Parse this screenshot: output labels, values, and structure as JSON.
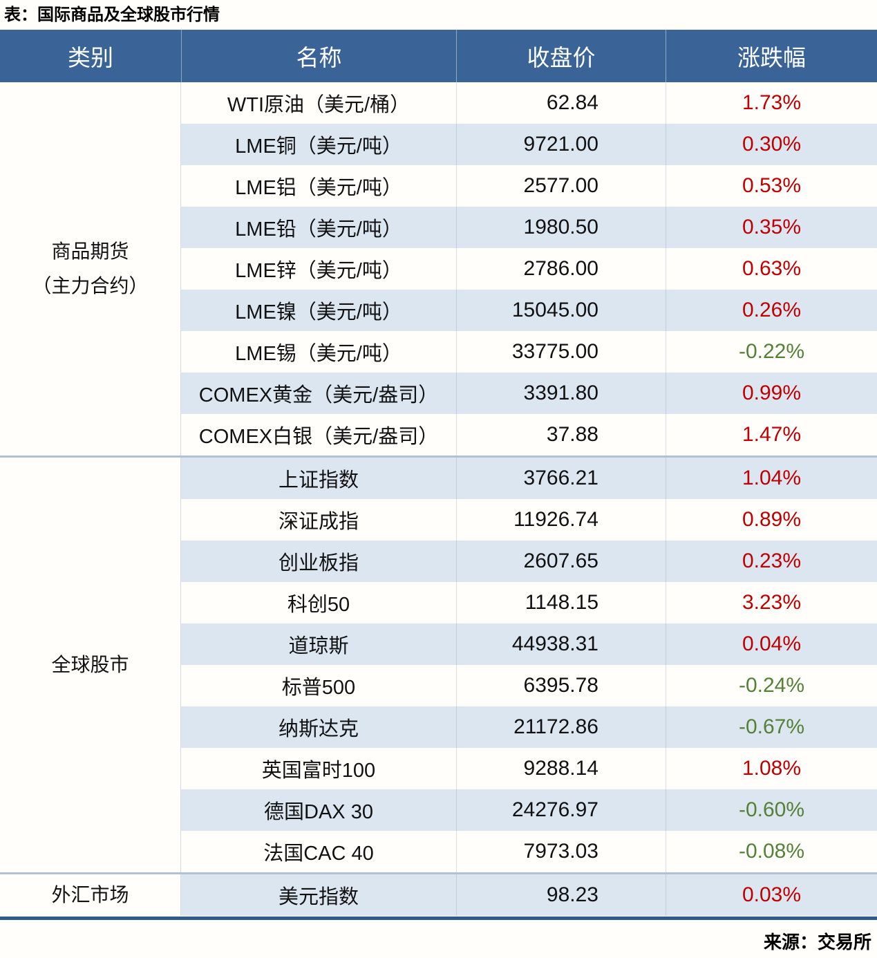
{
  "title": "表：国际商品及全球股市行情",
  "source_note": "来源：交易所",
  "colors": {
    "header_bg": "#3a6398",
    "header_text": "#ffffff",
    "row_bg": "#fffefb",
    "row_alt_bg": "#dce6f1",
    "up_red": "#c00000",
    "down_green": "#538135",
    "group_divider": "#b2c0d3",
    "bottom_border": "#2e598c"
  },
  "table": {
    "headers": [
      "类别",
      "名称",
      "收盘价",
      "涨跌幅"
    ],
    "groups": [
      {
        "category_lines": [
          "商品期货",
          "（主力合约）"
        ],
        "rows": [
          {
            "name": "WTI原油（美元/桶）",
            "close": "62.84",
            "change": "1.73%"
          },
          {
            "name": "LME铜（美元/吨）",
            "close": "9721.00",
            "change": "0.30%"
          },
          {
            "name": "LME铝（美元/吨）",
            "close": "2577.00",
            "change": "0.53%"
          },
          {
            "name": "LME铅（美元/吨）",
            "close": "1980.50",
            "change": "0.35%"
          },
          {
            "name": "LME锌（美元/吨）",
            "close": "2786.00",
            "change": "0.63%"
          },
          {
            "name": "LME镍（美元/吨）",
            "close": "15045.00",
            "change": "0.26%"
          },
          {
            "name": "LME锡（美元/吨）",
            "close": "33775.00",
            "change": "-0.22%"
          },
          {
            "name": "COMEX黄金（美元/盎司）",
            "close": "3391.80",
            "change": "0.99%"
          },
          {
            "name": "COMEX白银（美元/盎司）",
            "close": "37.88",
            "change": "1.47%"
          }
        ]
      },
      {
        "category_lines": [
          "全球股市"
        ],
        "rows": [
          {
            "name": "上证指数",
            "close": "3766.21",
            "change": "1.04%"
          },
          {
            "name": "深证成指",
            "close": "11926.74",
            "change": "0.89%"
          },
          {
            "name": "创业板指",
            "close": "2607.65",
            "change": "0.23%"
          },
          {
            "name": "科创50",
            "close": "1148.15",
            "change": "3.23%"
          },
          {
            "name": "道琼斯",
            "close": "44938.31",
            "change": "0.04%"
          },
          {
            "name": "标普500",
            "close": "6395.78",
            "change": "-0.24%"
          },
          {
            "name": "纳斯达克",
            "close": "21172.86",
            "change": "-0.67%"
          },
          {
            "name": "英国富时100",
            "close": "9288.14",
            "change": "1.08%"
          },
          {
            "name": "德国DAX 30",
            "close": "24276.97",
            "change": "-0.60%"
          },
          {
            "name": "法国CAC 40",
            "close": "7973.03",
            "change": "-0.08%"
          }
        ]
      },
      {
        "category_lines": [
          "外汇市场"
        ],
        "rows": [
          {
            "name": "美元指数",
            "close": "98.23",
            "change": "0.03%"
          }
        ]
      }
    ]
  },
  "chart_data": {
    "type": "table",
    "title": "表：国际商品及全球股市行情",
    "columns": [
      "类别",
      "名称",
      "收盘价",
      "涨跌幅"
    ],
    "rows": [
      [
        "商品期货（主力合约）",
        "WTI原油（美元/桶）",
        62.84,
        "1.73%"
      ],
      [
        "商品期货（主力合约）",
        "LME铜（美元/吨）",
        9721.0,
        "0.30%"
      ],
      [
        "商品期货（主力合约）",
        "LME铝（美元/吨）",
        2577.0,
        "0.53%"
      ],
      [
        "商品期货（主力合约）",
        "LME铅（美元/吨）",
        1980.5,
        "0.35%"
      ],
      [
        "商品期货（主力合约）",
        "LME锌（美元/吨）",
        2786.0,
        "0.63%"
      ],
      [
        "商品期货（主力合约）",
        "LME镍（美元/吨）",
        15045.0,
        "0.26%"
      ],
      [
        "商品期货（主力合约）",
        "LME锡（美元/吨）",
        33775.0,
        "-0.22%"
      ],
      [
        "商品期货（主力合约）",
        "COMEX黄金（美元/盎司）",
        3391.8,
        "0.99%"
      ],
      [
        "商品期货（主力合约）",
        "COMEX白银（美元/盎司）",
        37.88,
        "1.47%"
      ],
      [
        "全球股市",
        "上证指数",
        3766.21,
        "1.04%"
      ],
      [
        "全球股市",
        "深证成指",
        11926.74,
        "0.89%"
      ],
      [
        "全球股市",
        "创业板指",
        2607.65,
        "0.23%"
      ],
      [
        "全球股市",
        "科创50",
        1148.15,
        "3.23%"
      ],
      [
        "全球股市",
        "道琼斯",
        44938.31,
        "0.04%"
      ],
      [
        "全球股市",
        "标普500",
        6395.78,
        "-0.24%"
      ],
      [
        "全球股市",
        "纳斯达克",
        21172.86,
        "-0.67%"
      ],
      [
        "全球股市",
        "英国富时100",
        9288.14,
        "1.08%"
      ],
      [
        "全球股市",
        "德国DAX 30",
        24276.97,
        "-0.60%"
      ],
      [
        "全球股市",
        "法国CAC 40",
        7973.03,
        "-0.08%"
      ],
      [
        "外汇市场",
        "美元指数",
        98.23,
        "0.03%"
      ]
    ],
    "source": "来源：交易所",
    "color_coding": {
      "positive": "#c00000",
      "negative": "#538135"
    }
  }
}
